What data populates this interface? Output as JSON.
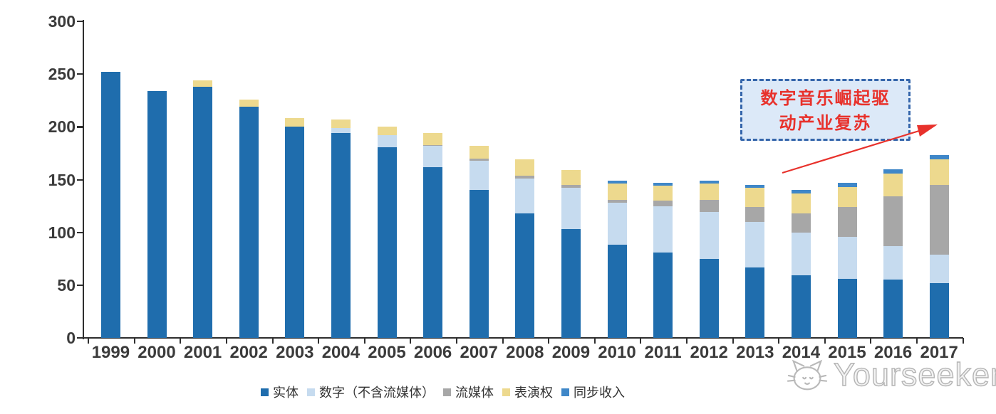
{
  "watermark": {
    "text": "Yourseeker",
    "logo": "cat-logo-icon",
    "color": "#b4b4b4"
  },
  "annotation": {
    "line1": "数字音乐崛起驱",
    "line2": "动产业复苏",
    "fill": "#dce9f8",
    "border_color": "#3566ab",
    "text_color": "#e8312b",
    "arrow_color": "#e8312b"
  },
  "axis_color": "#2e2e2e",
  "label_color": "#3b3b3b",
  "chart_data": {
    "type": "bar",
    "stacked": true,
    "title": "",
    "xlabel": "",
    "ylabel": "",
    "ylim": [
      0,
      300
    ],
    "yticks": [
      0,
      50,
      100,
      150,
      200,
      250,
      300
    ],
    "grid": false,
    "legend_position": "bottom",
    "categories": [
      "1999",
      "2000",
      "2001",
      "2002",
      "2003",
      "2004",
      "2005",
      "2006",
      "2007",
      "2008",
      "2009",
      "2010",
      "2011",
      "2012",
      "2013",
      "2014",
      "2015",
      "2016",
      "2017"
    ],
    "series": [
      {
        "name": "实体",
        "color": "#1f6dad",
        "values": [
          252,
          234,
          238,
          219,
          200,
          194,
          181,
          162,
          140,
          118,
          103,
          88,
          81,
          75,
          67,
          59,
          56,
          55,
          52
        ]
      },
      {
        "name": "数字（不含流媒体）",
        "color": "#c6dbef",
        "values": [
          0,
          0,
          0,
          0,
          0,
          5,
          11,
          20,
          28,
          33,
          39,
          40,
          44,
          44,
          43,
          41,
          40,
          32,
          27
        ]
      },
      {
        "name": "流媒体",
        "color": "#a7a7a7",
        "values": [
          0,
          0,
          0,
          0,
          0,
          0,
          0,
          1,
          2,
          3,
          3,
          3,
          5,
          12,
          14,
          18,
          28,
          47,
          66
        ]
      },
      {
        "name": "表演权",
        "color": "#edd98e",
        "values": [
          0,
          0,
          6,
          7,
          8,
          8,
          8,
          11,
          12,
          15,
          14,
          15,
          14,
          15,
          18,
          19,
          19,
          22,
          24
        ]
      },
      {
        "name": "同步收入",
        "color": "#3f87c8",
        "values": [
          0,
          0,
          0,
          0,
          0,
          0,
          0,
          0,
          0,
          0,
          0,
          3,
          3,
          3,
          3,
          3,
          4,
          4,
          4
        ]
      }
    ]
  }
}
